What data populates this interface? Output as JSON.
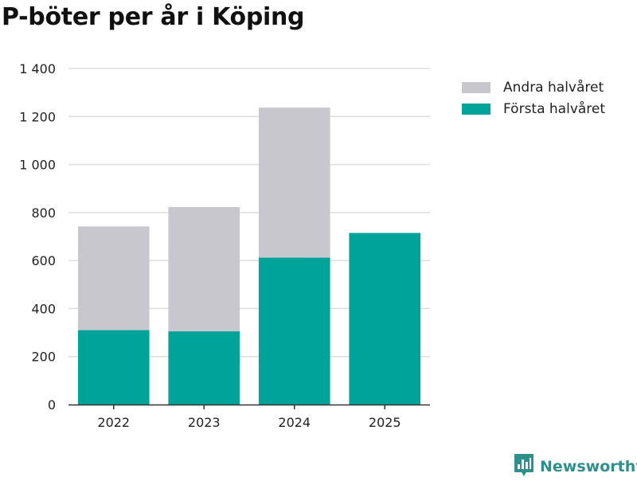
{
  "chart_data": {
    "type": "bar",
    "stacked": true,
    "title": "P-böter per år i Köping",
    "categories": [
      "2022",
      "2023",
      "2024",
      "2025"
    ],
    "series": [
      {
        "name": "Första halvåret",
        "color": "#00a398",
        "values": [
          310,
          305,
          612,
          715
        ]
      },
      {
        "name": "Andra halvåret",
        "color": "#c8c7cd",
        "values": [
          432,
          518,
          625,
          0
        ]
      }
    ],
    "legend_order": [
      "Andra halvåret",
      "Första halvåret"
    ],
    "yticks": [
      0,
      200,
      400,
      600,
      800,
      1000,
      1200,
      1400
    ],
    "ytick_labels": [
      "0",
      "200",
      "400",
      "600",
      "800",
      "1 000",
      "1 200",
      "1 400"
    ],
    "ylim": [
      0,
      1400
    ],
    "xlabel": "",
    "ylabel": "",
    "grid": true,
    "legend_position": "top-right"
  },
  "branding": {
    "name": "Newsworthy",
    "color": "#2f8f8a",
    "icon": "newsworthy-logo-icon"
  }
}
